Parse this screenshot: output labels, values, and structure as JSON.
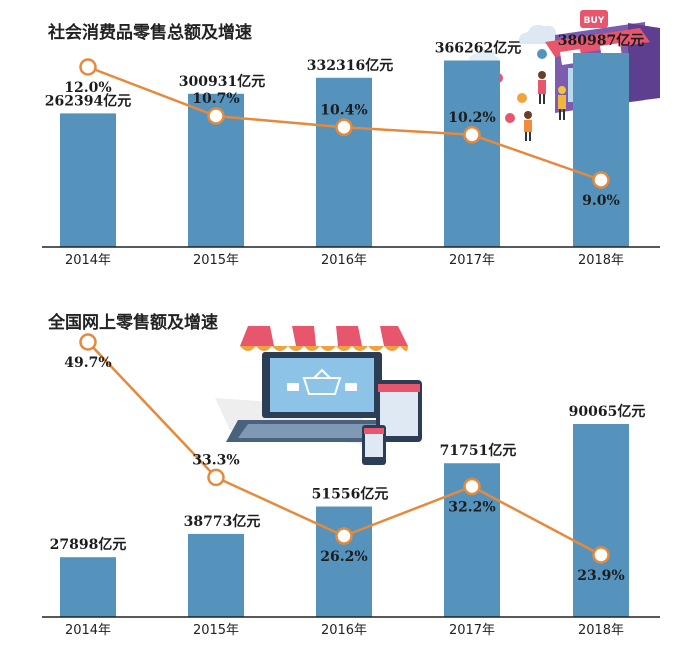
{
  "colors": {
    "bar": "#5593bd",
    "line": "#e58a3c",
    "marker_fill": "#ffffff",
    "axis": "#222222",
    "text": "#1c1c1c"
  },
  "chart_data": [
    {
      "type": "bar",
      "title": "社会消费品零售总额及增速",
      "categories": [
        "2014年",
        "2015年",
        "2016年",
        "2017年",
        "2018年"
      ],
      "series": [
        {
          "name": "社会消费品零售总额",
          "unit": "亿元",
          "values": [
            262394,
            300931,
            332316,
            366262,
            380987
          ],
          "labels": [
            "262394亿元",
            "300931亿元",
            "332316亿元",
            "366262亿元",
            "380987亿元"
          ]
        },
        {
          "name": "增速",
          "type": "line",
          "unit": "%",
          "values": [
            12.0,
            10.7,
            10.4,
            10.2,
            9.0
          ],
          "labels": [
            "12.0%",
            "10.7%",
            "10.4%",
            "10.2%",
            "9.0%"
          ]
        }
      ],
      "bar_ylim": [
        0,
        400000
      ],
      "line_ylim": [
        0,
        14
      ],
      "grid": false
    },
    {
      "type": "bar",
      "title": "全国网上零售额及增速",
      "categories": [
        "2014年",
        "2015年",
        "2016年",
        "2017年",
        "2018年"
      ],
      "series": [
        {
          "name": "全国网上零售额",
          "unit": "亿元",
          "values": [
            27898,
            38773,
            51556,
            71751,
            90065
          ],
          "labels": [
            "27898亿元",
            "38773亿元",
            "51556亿元",
            "71751亿元",
            "90065亿元"
          ]
        },
        {
          "name": "增速",
          "type": "line",
          "unit": "%",
          "values": [
            49.7,
            33.3,
            26.2,
            32.2,
            23.9
          ],
          "labels": [
            "49.7%",
            "33.3%",
            "26.2%",
            "32.2%",
            "23.9%"
          ]
        }
      ],
      "bar_ylim": [
        0,
        100000
      ],
      "line_ylim": [
        0,
        60
      ],
      "grid": false
    }
  ],
  "illustrations": {
    "shop": {
      "sign": "BUY"
    }
  }
}
